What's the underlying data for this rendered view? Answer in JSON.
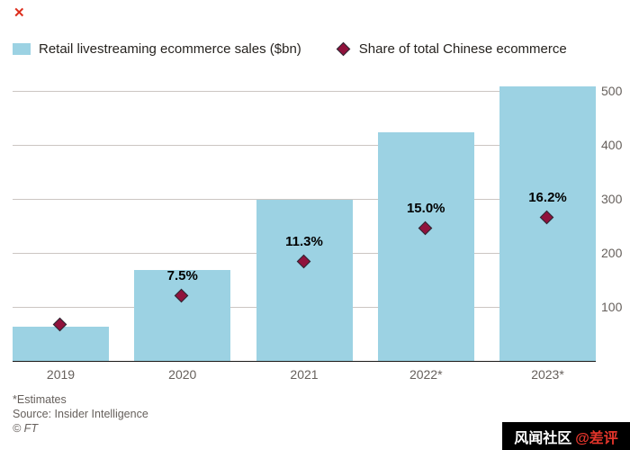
{
  "page": {
    "close_glyph": "✕"
  },
  "legend": {
    "bars_label": "Retail livestreaming ecommerce sales ($bn)",
    "share_label": "Share of total Chinese ecommerce"
  },
  "chart_data": {
    "type": "bar",
    "title": "",
    "xlabel": "",
    "ylabel": "",
    "categories": [
      "2019",
      "2020",
      "2021",
      "2022*",
      "2023*"
    ],
    "series": [
      {
        "name": "Retail livestreaming ecommerce sales ($bn)",
        "type": "bar",
        "values": [
          65,
          170,
          300,
          425,
          510
        ],
        "color": "#9cd2e3"
      },
      {
        "name": "Share of total Chinese ecommerce",
        "type": "scatter",
        "marker": "diamond",
        "values_percent": [
          4.3,
          7.5,
          11.3,
          15.0,
          16.2
        ],
        "point_labels": [
          "",
          "7.5%",
          "11.3%",
          "15.0%",
          "16.2%"
        ],
        "color": "#90123c"
      }
    ],
    "y_axis": {
      "side": "right",
      "ticks": [
        100,
        200,
        300,
        400,
        500
      ],
      "range": [
        0,
        517
      ]
    },
    "secondary_axis": {
      "visible": false,
      "layout_max_percent": 31
    },
    "grid": true,
    "legend_position": "top"
  },
  "footer": {
    "estimates_note": "*Estimates",
    "source": "Source: Insider Intelligence",
    "ft_credit": "© FT"
  },
  "watermark": {
    "site": "风闻社区",
    "handle": "@差评"
  }
}
